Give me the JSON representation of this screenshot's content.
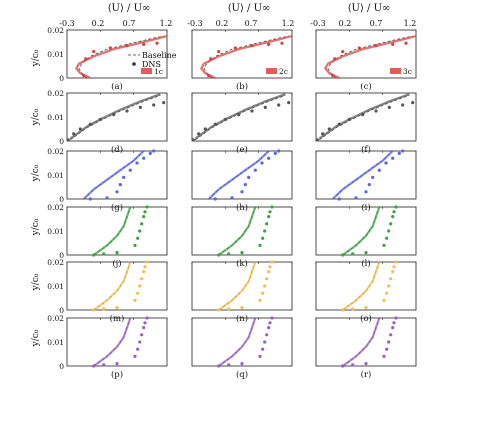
{
  "figure": {
    "top_axis_label": "⟨U⟩ / U∞",
    "y_axis_label": "y/c₀",
    "legend": {
      "baseline": "Baseline",
      "dns": "DNS"
    }
  },
  "chart_data": {
    "type": "line",
    "layout": "6 rows × 3 columns small multiples",
    "xlim": [
      -0.3,
      1.2
    ],
    "ylim": [
      0,
      0.02
    ],
    "top_ticks": [
      "-0.3",
      "0.2",
      "0.7",
      "1.2"
    ],
    "y_ticks": [
      "0",
      "0.01",
      "0.02"
    ],
    "panel_labels": [
      "(a)",
      "(b)",
      "(c)",
      "(d)",
      "(e)",
      "(f)",
      "(g)",
      "(h)",
      "(i)",
      "(j)",
      "(k)",
      "(l)",
      "(m)",
      "(n)",
      "(o)",
      "(p)",
      "(q)",
      "(r)"
    ],
    "column_tags": [
      "1c",
      "2c",
      "3c"
    ],
    "row_colors": [
      "#d9413f",
      "#555555",
      "#5b63e6",
      "#3da33d",
      "#f2c04c",
      "#9b5fc4"
    ],
    "rows": [
      {
        "model_curve": {
          "x": [
            0.05,
            -0.1,
            -0.16,
            -0.12,
            0.1,
            0.4,
            0.7,
            1.0,
            1.2
          ],
          "y": [
            0,
            0.002,
            0.004,
            0.006,
            0.009,
            0.012,
            0.014,
            0.016,
            0.0175
          ]
        },
        "baseline_curve": {
          "x": [
            0.0,
            -0.08,
            -0.12,
            -0.08,
            0.05,
            0.3,
            0.6,
            0.9,
            1.15
          ],
          "y": [
            0.0,
            0.002,
            0.004,
            0.006,
            0.009,
            0.012,
            0.014,
            0.016,
            0.0175
          ]
        },
        "dns": {
          "x": [
            -0.05,
            -0.02,
            0.1,
            0.35,
            0.6,
            0.85,
            1.05
          ],
          "y": [
            0.001,
            0.008,
            0.011,
            0.0125,
            0.0135,
            0.014,
            0.0145
          ]
        }
      },
      {
        "model_curve": {
          "x": [
            -0.25,
            -0.15,
            0.0,
            0.2,
            0.5,
            0.8,
            1.1
          ],
          "y": [
            0.001,
            0.003,
            0.006,
            0.009,
            0.013,
            0.0165,
            0.0195
          ]
        },
        "baseline_curve": {
          "x": [
            -0.25,
            -0.15,
            0.0,
            0.2,
            0.5,
            0.8,
            1.1
          ],
          "y": [
            0.0005,
            0.0025,
            0.0055,
            0.0085,
            0.0125,
            0.016,
            0.019
          ]
        },
        "dns": {
          "x": [
            -0.28,
            -0.2,
            -0.1,
            0.05,
            0.2,
            0.4,
            0.6,
            0.8,
            1.0,
            1.15
          ],
          "y": [
            0.0005,
            0.003,
            0.005,
            0.007,
            0.009,
            0.011,
            0.0125,
            0.014,
            0.015,
            0.016
          ]
        }
      },
      {
        "model_curve": {
          "x": [
            -0.05,
            0.1,
            0.3,
            0.5,
            0.7,
            0.85
          ],
          "y": [
            0,
            0.004,
            0.008,
            0.012,
            0.016,
            0.02
          ]
        },
        "baseline_curve": {
          "x": [
            -0.05,
            0.1,
            0.3,
            0.5,
            0.7,
            0.85
          ],
          "y": [
            0,
            0.004,
            0.008,
            0.012,
            0.016,
            0.02
          ]
        },
        "dns": {
          "x": [
            0.05,
            0.3,
            0.45,
            0.5,
            0.55,
            0.65,
            0.75,
            0.85,
            0.95,
            1.0
          ],
          "y": [
            0,
            0.0005,
            0.003,
            0.006,
            0.009,
            0.012,
            0.015,
            0.017,
            0.019,
            0.02
          ]
        }
      },
      {
        "model_curve": {
          "x": [
            0.1,
            0.3,
            0.45,
            0.55,
            0.6,
            0.65
          ],
          "y": [
            0,
            0.004,
            0.008,
            0.012,
            0.016,
            0.02
          ]
        },
        "baseline_curve": {
          "x": [
            0.1,
            0.3,
            0.45,
            0.55,
            0.6,
            0.65
          ],
          "y": [
            0,
            0.004,
            0.008,
            0.012,
            0.016,
            0.02
          ]
        },
        "dns": {
          "x": [
            0.1,
            0.25,
            0.45,
            0.72,
            0.76,
            0.79,
            0.82,
            0.85,
            0.87,
            0.9
          ],
          "y": [
            0,
            0.0005,
            0.001,
            0.004,
            0.007,
            0.01,
            0.013,
            0.016,
            0.018,
            0.02
          ]
        }
      },
      {
        "model_curve": {
          "x": [
            0.1,
            0.3,
            0.45,
            0.55,
            0.6,
            0.65
          ],
          "y": [
            0,
            0.004,
            0.008,
            0.012,
            0.016,
            0.02
          ]
        },
        "baseline_curve": {
          "x": [
            0.1,
            0.3,
            0.45,
            0.55,
            0.6,
            0.65
          ],
          "y": [
            0,
            0.004,
            0.008,
            0.012,
            0.016,
            0.02
          ]
        },
        "dns": {
          "x": [
            0.1,
            0.25,
            0.45,
            0.72,
            0.76,
            0.79,
            0.82,
            0.85,
            0.87,
            0.9
          ],
          "y": [
            0,
            0.0005,
            0.001,
            0.004,
            0.007,
            0.01,
            0.013,
            0.016,
            0.018,
            0.02
          ]
        }
      },
      {
        "model_curve": {
          "x": [
            0.1,
            0.3,
            0.45,
            0.55,
            0.6,
            0.65
          ],
          "y": [
            0,
            0.004,
            0.008,
            0.012,
            0.016,
            0.02
          ]
        },
        "baseline_curve": {
          "x": [
            0.1,
            0.3,
            0.45,
            0.55,
            0.6,
            0.65
          ],
          "y": [
            0,
            0.004,
            0.008,
            0.012,
            0.016,
            0.02
          ]
        },
        "dns": {
          "x": [
            0.1,
            0.25,
            0.45,
            0.72,
            0.76,
            0.79,
            0.82,
            0.85,
            0.87,
            0.9
          ],
          "y": [
            0,
            0.0005,
            0.001,
            0.004,
            0.007,
            0.01,
            0.013,
            0.016,
            0.018,
            0.02
          ]
        }
      }
    ]
  }
}
